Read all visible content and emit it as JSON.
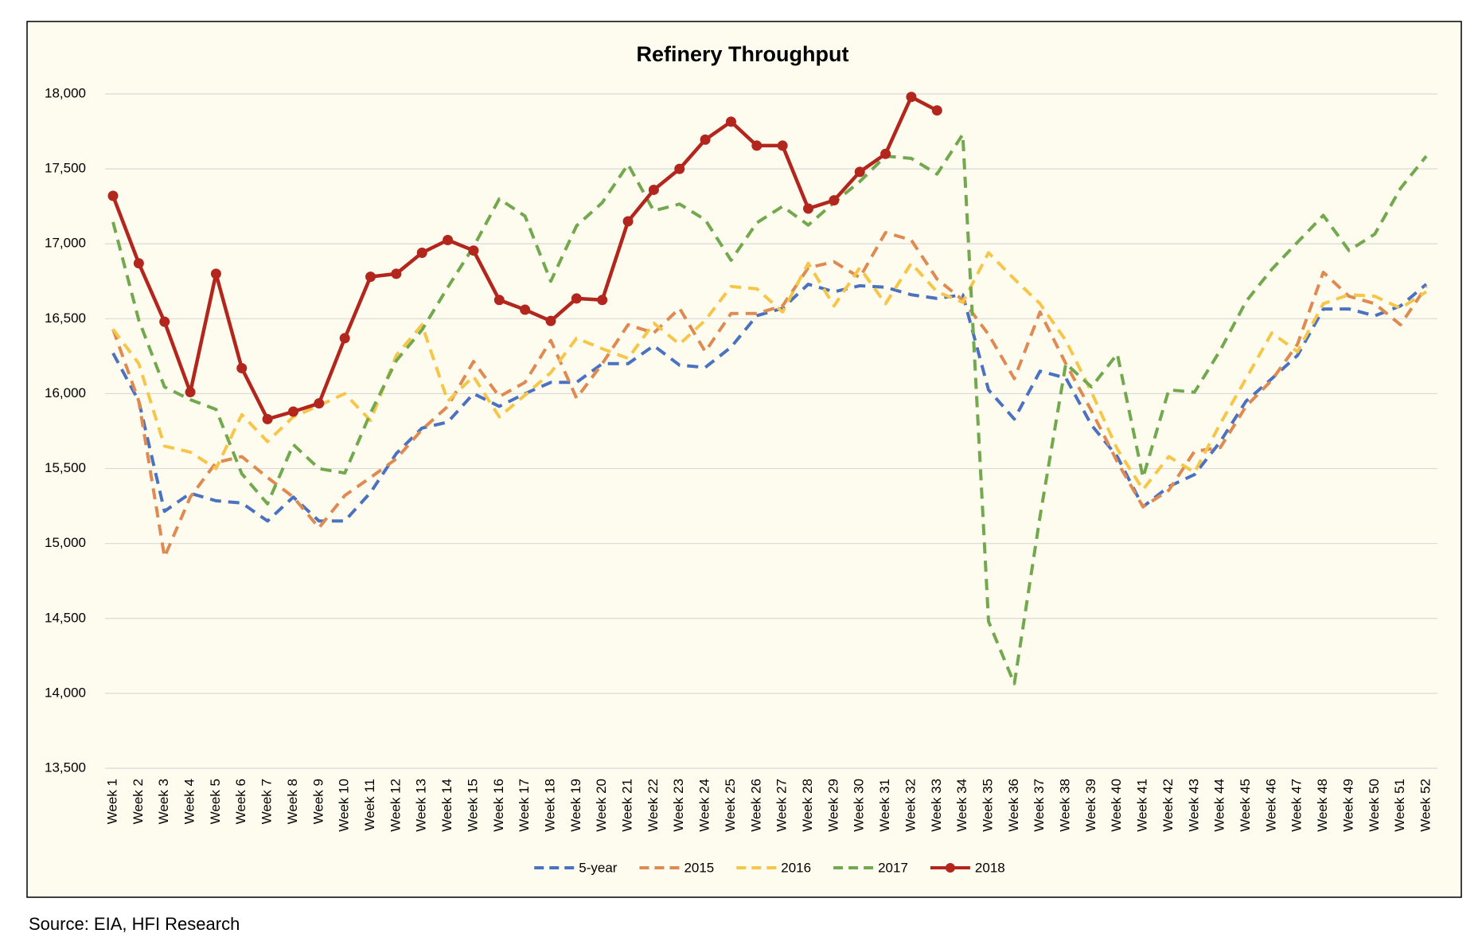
{
  "chart_data": {
    "type": "line",
    "title": "Refinery Throughput",
    "source": "Source: EIA, HFI Research",
    "categories": [
      "Week 1",
      "Week 2",
      "Week 3",
      "Week 4",
      "Week 5",
      "Week 6",
      "Week 7",
      "Week 8",
      "Week 9",
      "Week 10",
      "Week 11",
      "Week 12",
      "Week 13",
      "Week 14",
      "Week 15",
      "Week 16",
      "Week 17",
      "Week 18",
      "Week 19",
      "Week 20",
      "Week 21",
      "Week 22",
      "Week 23",
      "Week 24",
      "Week 25",
      "Week 26",
      "Week 27",
      "Week 28",
      "Week 29",
      "Week 30",
      "Week 31",
      "Week 32",
      "Week 33",
      "Week 34",
      "Week 35",
      "Week 36",
      "Week 37",
      "Week 38",
      "Week 39",
      "Week 40",
      "Week 41",
      "Week 42",
      "Week 43",
      "Week 44",
      "Week 45",
      "Week 46",
      "Week 47",
      "Week 48",
      "Week 49",
      "Week 50",
      "Week 51",
      "Week 52"
    ],
    "series": [
      {
        "name": "5-year",
        "color": "#4a72c0",
        "style": "dashed",
        "values": [
          16270,
          15950,
          15215,
          15335,
          15285,
          15270,
          15150,
          15310,
          15150,
          15150,
          15340,
          15600,
          15770,
          15810,
          16000,
          15915,
          16000,
          16075,
          16075,
          16200,
          16200,
          16320,
          16190,
          16175,
          16310,
          16520,
          16570,
          16730,
          16680,
          16720,
          16710,
          16660,
          16635,
          16660,
          16025,
          15830,
          16150,
          16105,
          15790,
          15580,
          15245,
          15380,
          15460,
          15680,
          15950,
          16100,
          16255,
          16565,
          16565,
          16520,
          16585,
          16730
        ]
      },
      {
        "name": "2015",
        "color": "#df8a52",
        "style": "dashed",
        "values": [
          16430,
          15950,
          14910,
          15310,
          15540,
          15580,
          15440,
          15310,
          15105,
          15320,
          15440,
          15565,
          15760,
          15915,
          16215,
          15980,
          16075,
          16355,
          15970,
          16200,
          16460,
          16405,
          16570,
          16280,
          16535,
          16535,
          16585,
          16840,
          16880,
          16775,
          17075,
          17025,
          16765,
          16625,
          16395,
          16100,
          16545,
          16200,
          15885,
          15545,
          15245,
          15355,
          15615,
          15640,
          15915,
          16090,
          16330,
          16810,
          16650,
          16600,
          16460,
          16715
        ]
      },
      {
        "name": "2016",
        "color": "#f5c64a",
        "style": "dashed",
        "values": [
          16430,
          16200,
          15650,
          15610,
          15500,
          15860,
          15680,
          15845,
          15920,
          16000,
          15820,
          16255,
          16460,
          15950,
          16115,
          15845,
          15990,
          16140,
          16370,
          16300,
          16235,
          16470,
          16330,
          16490,
          16715,
          16700,
          16545,
          16870,
          16585,
          16840,
          16600,
          16870,
          16680,
          16610,
          16940,
          16765,
          16600,
          16355,
          16010,
          15630,
          15360,
          15580,
          15475,
          15800,
          16100,
          16405,
          16280,
          16600,
          16660,
          16650,
          16570,
          16680
        ]
      },
      {
        "name": "2017",
        "color": "#72a84e",
        "style": "dashed",
        "values": [
          17145,
          16490,
          16045,
          15960,
          15895,
          15465,
          15265,
          15660,
          15500,
          15470,
          15870,
          16220,
          16425,
          16710,
          16980,
          17300,
          17185,
          16750,
          17120,
          17275,
          17530,
          17220,
          17265,
          17160,
          16890,
          17140,
          17250,
          17125,
          17275,
          17415,
          17585,
          17570,
          17465,
          17730,
          14480,
          14065,
          15180,
          16200,
          16045,
          16265,
          15440,
          16025,
          16010,
          16290,
          16615,
          16830,
          17010,
          17190,
          16955,
          17065,
          17370,
          17585
        ]
      },
      {
        "name": "2018",
        "color": "#b3261e",
        "style": "solid",
        "markers": true,
        "values": [
          17320,
          16870,
          16480,
          16010,
          16800,
          16170,
          15830,
          15880,
          15935,
          16370,
          16780,
          16800,
          16940,
          17025,
          16955,
          16625,
          16560,
          16485,
          16635,
          16625,
          17150,
          17360,
          17500,
          17695,
          17815,
          17655,
          17655,
          17235,
          17290,
          17480,
          17600,
          17980,
          17890,
          null,
          null,
          null,
          null,
          null,
          null,
          null,
          null,
          null,
          null,
          null,
          null,
          null,
          null,
          null,
          null,
          null,
          null,
          null
        ]
      }
    ],
    "ylim": [
      13500,
      18000
    ],
    "yticks": [
      {
        "value": 13500,
        "label": "13,500"
      },
      {
        "value": 14000,
        "label": "14,000"
      },
      {
        "value": 14500,
        "label": "14,500"
      },
      {
        "value": 15000,
        "label": "15,000"
      },
      {
        "value": 15500,
        "label": "15,500"
      },
      {
        "value": 16000,
        "label": "16,000"
      },
      {
        "value": 16500,
        "label": "16,500"
      },
      {
        "value": 17000,
        "label": "17,000"
      },
      {
        "value": 17500,
        "label": "17,500"
      },
      {
        "value": 18000,
        "label": "18,000"
      }
    ],
    "grid": true,
    "legend": "bottom",
    "background": "#fefcee"
  }
}
